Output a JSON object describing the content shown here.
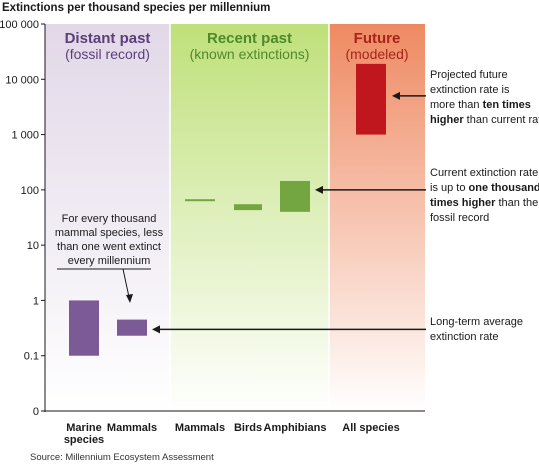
{
  "chart_data": {
    "type": "bar",
    "title": "Extinctions per thousand species per millennium",
    "yscale": "log",
    "ylim": [
      0.01,
      100000
    ],
    "yticks": [
      {
        "value": 0.01,
        "label": "0"
      },
      {
        "value": 0.1,
        "label": "0.1"
      },
      {
        "value": 1,
        "label": "1"
      },
      {
        "value": 10,
        "label": "10"
      },
      {
        "value": 100,
        "label": "100"
      },
      {
        "value": 1000,
        "label": "1 000"
      },
      {
        "value": 10000,
        "label": "10 000"
      },
      {
        "value": 100000,
        "label": "100 000"
      }
    ],
    "panels": [
      {
        "title": "Distant past",
        "subtitle": "(fossil record)",
        "color": "#ece6ef",
        "title_color": "#5b3f7a"
      },
      {
        "title": "Recent past",
        "subtitle": "(known extinctions)",
        "color": "#d4ea9a",
        "title_color": "#4e8a2a"
      },
      {
        "title": "Future",
        "subtitle": "(modeled)",
        "color": "#f29a78",
        "title_color": "#a8241a"
      }
    ],
    "series": [
      {
        "category": "Marine species",
        "panel": 0,
        "low": 0.1,
        "high": 1,
        "color": "#7b5a96"
      },
      {
        "category": "Mammals",
        "panel": 0,
        "low": 0.23,
        "high": 0.45,
        "color": "#7b5a96"
      },
      {
        "category": "Mammals",
        "panel": 1,
        "low": 65,
        "high": 65,
        "color": "#73a640"
      },
      {
        "category": "Birds",
        "panel": 1,
        "low": 43,
        "high": 55,
        "color": "#73a640"
      },
      {
        "category": "Amphibians",
        "panel": 1,
        "low": 40,
        "high": 145,
        "color": "#73a640"
      },
      {
        "category": "All species",
        "panel": 2,
        "low": 1000,
        "high": 19000,
        "color": "#c0161e"
      }
    ],
    "categories": [
      {
        "line1": "Marine",
        "line2": "species"
      },
      {
        "line1": "Mammals",
        "line2": ""
      },
      {
        "line1": "Mammals",
        "line2": ""
      },
      {
        "line1": "Birds",
        "line2": ""
      },
      {
        "line1": "Amphibians",
        "line2": ""
      },
      {
        "line1": "All species",
        "line2": ""
      }
    ],
    "annotations": {
      "future": [
        "Projected future",
        "extinction rate",
        "is ",
        "ten times",
        "higher",
        " than current rate"
      ],
      "current": [
        "Current extinction rate",
        "is up to ",
        "one thousand",
        "times higher",
        " than the",
        "fossil record"
      ],
      "longterm": [
        "Long-term average",
        "extinction rate"
      ],
      "mammal_note": [
        "For every thousand",
        "mammal species, less",
        "than one went extinct",
        "every millennium"
      ]
    },
    "annotation_text": {
      "future_l1": "Projected future",
      "future_l2": "extinction rate is",
      "future_l3a": "more than ",
      "future_l3b": "ten times",
      "future_l4a": "higher",
      "future_l4b": " than current rate",
      "current_l1": "Current extinction rate",
      "current_l2a": "is up to ",
      "current_l2b": "one thousand",
      "current_l3a": "times higher",
      "current_l3b": " than the",
      "current_l4": "fossil record",
      "longterm_l1": "Long-term average",
      "longterm_l2": "extinction rate",
      "note_l1": "For every thousand",
      "note_l2": "mammal species, less",
      "note_l3": "than one went extinct",
      "note_l4": "every millennium"
    },
    "source": "Source: Millennium Ecosystem Assessment"
  }
}
